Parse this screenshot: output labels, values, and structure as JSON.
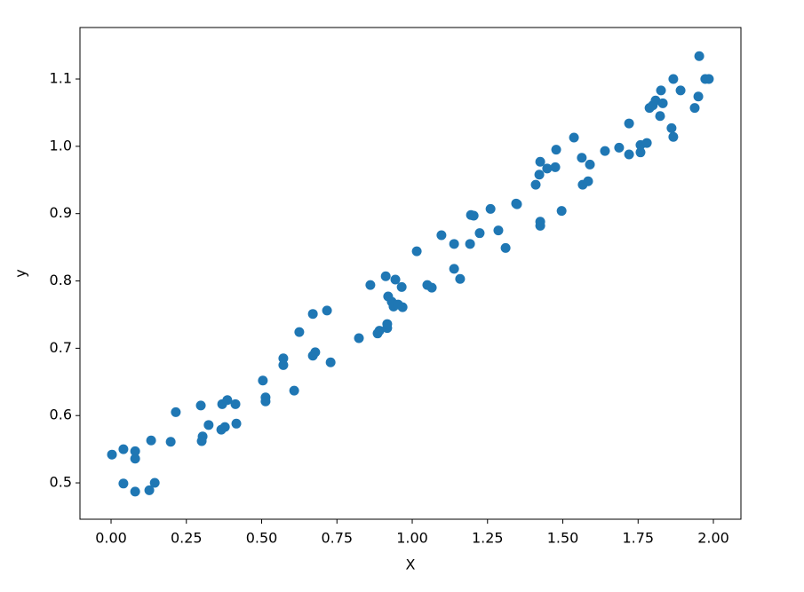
{
  "chart_data": {
    "type": "scatter",
    "xlabel": "X",
    "ylabel": "y",
    "color": "#1f77b4",
    "xlim": [
      -0.1033,
      2.0914
    ],
    "ylim": [
      0.446,
      1.1765
    ],
    "xticks": [
      {
        "value": 0,
        "label": "0.00"
      },
      {
        "value": 0.25,
        "label": "0.25"
      },
      {
        "value": 0.5,
        "label": "0.50"
      },
      {
        "value": 0.75,
        "label": "0.75"
      },
      {
        "value": 1,
        "label": "1.00"
      },
      {
        "value": 1.25,
        "label": "1.25"
      },
      {
        "value": 1.5,
        "label": "1.50"
      },
      {
        "value": 1.75,
        "label": "1.75"
      },
      {
        "value": 2,
        "label": "2.00"
      }
    ],
    "yticks": [
      0.5,
      0.6,
      0.7,
      0.8,
      0.9,
      {
        "value": 1,
        "label": "1.0"
      },
      1.1
    ],
    "x": [
      0.003,
      0.041,
      0.041,
      0.08,
      0.08,
      0.08,
      0.133,
      0.127,
      0.145,
      0.198,
      0.215,
      0.298,
      0.304,
      0.301,
      0.324,
      0.366,
      0.369,
      0.378,
      0.386,
      0.413,
      0.416,
      0.504,
      0.513,
      0.513,
      0.572,
      0.572,
      0.608,
      0.625,
      0.67,
      0.67,
      0.678,
      0.717,
      0.729,
      0.823,
      0.861,
      0.885,
      0.891,
      0.912,
      0.917,
      0.917,
      0.92,
      0.932,
      0.938,
      0.944,
      0.953,
      0.965,
      0.968,
      1.015,
      1.05,
      1.065,
      1.097,
      1.139,
      1.139,
      1.159,
      1.192,
      1.195,
      1.204,
      1.224,
      1.26,
      1.286,
      1.31,
      1.345,
      1.348,
      1.41,
      1.422,
      1.425,
      1.425,
      1.425,
      1.448,
      1.475,
      1.478,
      1.496,
      1.537,
      1.563,
      1.566,
      1.584,
      1.59,
      1.64,
      1.687,
      1.72,
      1.72,
      1.758,
      1.758,
      1.779,
      1.788,
      1.799,
      1.808,
      1.823,
      1.826,
      1.832,
      1.861,
      1.867,
      1.867,
      1.891,
      1.938,
      1.95,
      1.953,
      1.973,
      1.985
    ],
    "values": [
      0.542,
      0.55,
      0.499,
      0.547,
      0.536,
      0.487,
      0.563,
      0.489,
      0.5,
      0.561,
      0.605,
      0.615,
      0.569,
      0.562,
      0.586,
      0.579,
      0.617,
      0.583,
      0.623,
      0.617,
      0.588,
      0.652,
      0.627,
      0.621,
      0.685,
      0.675,
      0.637,
      0.724,
      0.751,
      0.689,
      0.694,
      0.756,
      0.679,
      0.715,
      0.794,
      0.722,
      0.726,
      0.807,
      0.73,
      0.736,
      0.777,
      0.769,
      0.762,
      0.802,
      0.765,
      0.791,
      0.761,
      0.844,
      0.794,
      0.79,
      0.868,
      0.855,
      0.818,
      0.803,
      0.855,
      0.898,
      0.897,
      0.871,
      0.907,
      0.875,
      0.849,
      0.915,
      0.914,
      0.943,
      0.958,
      0.977,
      0.888,
      0.882,
      0.967,
      0.969,
      0.995,
      0.904,
      1.013,
      0.983,
      0.943,
      0.948,
      0.973,
      0.993,
      0.998,
      1.034,
      0.988,
      0.991,
      1.002,
      1.005,
      1.057,
      1.061,
      1.068,
      1.045,
      1.083,
      1.064,
      1.027,
      1.014,
      1.1,
      1.083,
      1.057,
      1.074,
      1.134,
      1.1,
      1.1
    ]
  }
}
